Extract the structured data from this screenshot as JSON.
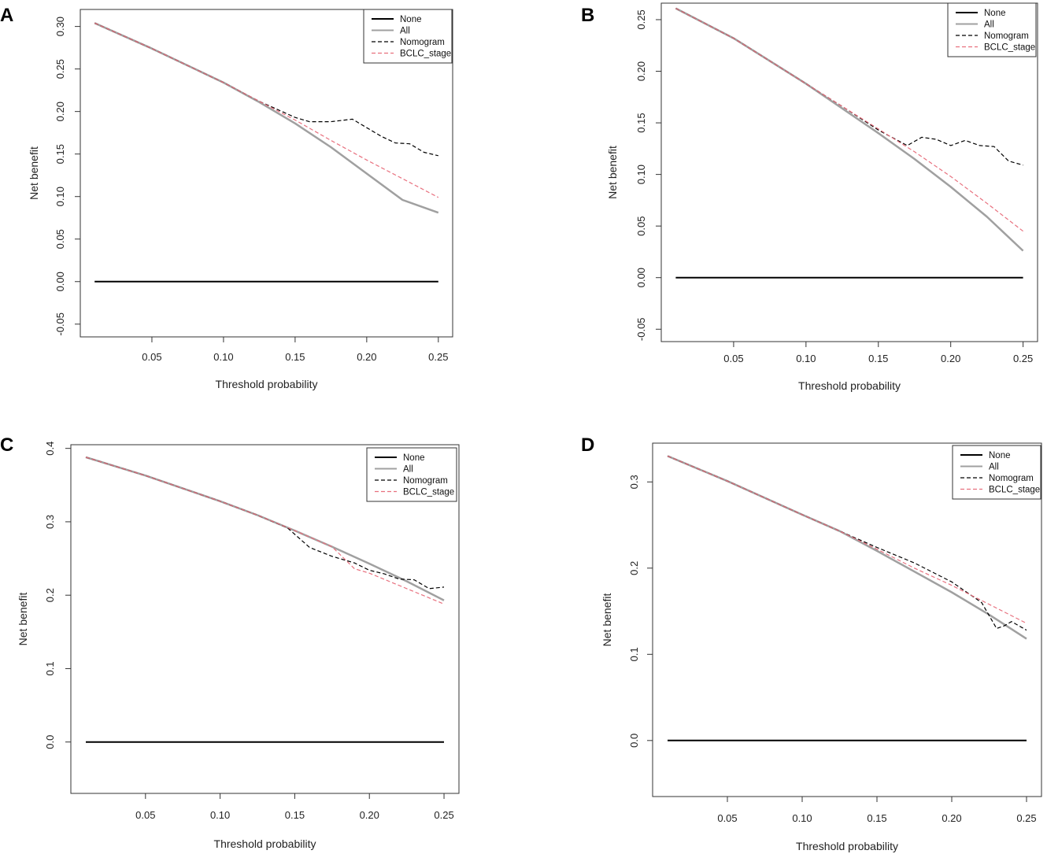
{
  "chart_data": [
    {
      "panel": "A",
      "type": "line",
      "xlabel": "Threshold probability",
      "ylabel": "Net benefit",
      "xlim": [
        0.0,
        0.26
      ],
      "ylim": [
        -0.065,
        0.32
      ],
      "xticks": [
        0.05,
        0.1,
        0.15,
        0.2,
        0.25
      ],
      "xtick_labels": [
        "0.05",
        "0.10",
        "0.15",
        "0.20",
        "0.25"
      ],
      "yticks": [
        -0.05,
        0.0,
        0.05,
        0.1,
        0.15,
        0.2,
        0.25,
        0.3
      ],
      "ytick_labels": [
        "-0.05",
        "0.00",
        "0.05",
        "0.10",
        "0.15",
        "0.20",
        "0.25",
        "0.30"
      ],
      "legend": [
        "None",
        "All",
        "Nomogram",
        "BCLC_stage"
      ],
      "series": [
        {
          "name": "None",
          "color": "#000000",
          "style": "solid",
          "width": 2,
          "x": [
            0.01,
            0.25
          ],
          "y": [
            0.0,
            0.0
          ]
        },
        {
          "name": "All",
          "color": "#a0a0a0",
          "style": "solid",
          "width": 2.5,
          "x": [
            0.01,
            0.05,
            0.1,
            0.125,
            0.15,
            0.175,
            0.2,
            0.225,
            0.25
          ],
          "y": [
            0.304,
            0.274,
            0.234,
            0.211,
            0.186,
            0.158,
            0.127,
            0.096,
            0.081
          ]
        },
        {
          "name": "Nomogram",
          "color": "#000000",
          "style": "dashed",
          "width": 1.2,
          "x": [
            0.01,
            0.05,
            0.1,
            0.125,
            0.15,
            0.16,
            0.175,
            0.19,
            0.2,
            0.21,
            0.22,
            0.23,
            0.24,
            0.25
          ],
          "y": [
            0.304,
            0.274,
            0.234,
            0.212,
            0.193,
            0.188,
            0.188,
            0.191,
            0.181,
            0.171,
            0.163,
            0.162,
            0.152,
            0.148
          ]
        },
        {
          "name": "BCLC_stage",
          "color": "#e8707e",
          "style": "dashed",
          "width": 1.2,
          "x": [
            0.01,
            0.05,
            0.1,
            0.125,
            0.15,
            0.175,
            0.2,
            0.225,
            0.25
          ],
          "y": [
            0.304,
            0.274,
            0.234,
            0.212,
            0.19,
            0.166,
            0.143,
            0.121,
            0.099
          ]
        }
      ]
    },
    {
      "panel": "B",
      "type": "line",
      "xlabel": "Threshold probability",
      "ylabel": "Net benefit",
      "xlim": [
        0.0,
        0.26
      ],
      "ylim": [
        -0.062,
        0.266
      ],
      "xticks": [
        0.05,
        0.1,
        0.15,
        0.2,
        0.25
      ],
      "xtick_labels": [
        "0.05",
        "0.10",
        "0.15",
        "0.20",
        "0.25"
      ],
      "yticks": [
        -0.05,
        0.0,
        0.05,
        0.1,
        0.15,
        0.2,
        0.25
      ],
      "ytick_labels": [
        "-0.05",
        "0.00",
        "0.05",
        "0.10",
        "0.15",
        "0.20",
        "0.25"
      ],
      "legend": [
        "None",
        "All",
        "Nomogram",
        "BCLC_stage"
      ],
      "series": [
        {
          "name": "None",
          "color": "#000000",
          "style": "solid",
          "width": 2,
          "x": [
            0.01,
            0.25
          ],
          "y": [
            0.0,
            0.0
          ]
        },
        {
          "name": "All",
          "color": "#a0a0a0",
          "style": "solid",
          "width": 2.5,
          "x": [
            0.01,
            0.05,
            0.1,
            0.125,
            0.15,
            0.175,
            0.2,
            0.225,
            0.25
          ],
          "y": [
            0.261,
            0.232,
            0.188,
            0.164,
            0.14,
            0.115,
            0.088,
            0.059,
            0.026
          ]
        },
        {
          "name": "Nomogram",
          "color": "#000000",
          "style": "dashed",
          "width": 1.2,
          "x": [
            0.01,
            0.05,
            0.1,
            0.125,
            0.15,
            0.17,
            0.18,
            0.19,
            0.2,
            0.21,
            0.22,
            0.23,
            0.24,
            0.25
          ],
          "y": [
            0.261,
            0.232,
            0.188,
            0.166,
            0.143,
            0.128,
            0.136,
            0.134,
            0.128,
            0.133,
            0.128,
            0.127,
            0.113,
            0.109
          ]
        },
        {
          "name": "BCLC_stage",
          "color": "#e8707e",
          "style": "dashed",
          "width": 1.2,
          "x": [
            0.01,
            0.05,
            0.1,
            0.125,
            0.15,
            0.175,
            0.2,
            0.225,
            0.25
          ],
          "y": [
            0.261,
            0.232,
            0.188,
            0.166,
            0.144,
            0.122,
            0.098,
            0.072,
            0.045
          ]
        }
      ]
    },
    {
      "panel": "C",
      "type": "line",
      "xlabel": "Threshold probability",
      "ylabel": "Net benefit",
      "xlim": [
        0.0,
        0.26
      ],
      "ylim": [
        -0.07,
        0.405
      ],
      "xticks": [
        0.05,
        0.1,
        0.15,
        0.2,
        0.25
      ],
      "xtick_labels": [
        "0.05",
        "0.10",
        "0.15",
        "0.20",
        "0.25"
      ],
      "yticks": [
        0.0,
        0.1,
        0.2,
        0.3,
        0.4
      ],
      "ytick_labels": [
        "0.0",
        "0.1",
        "0.2",
        "0.3",
        "0.4"
      ],
      "legend": [
        "None",
        "All",
        "Nomogram",
        "BCLC_stage"
      ],
      "series": [
        {
          "name": "None",
          "color": "#000000",
          "style": "solid",
          "width": 2,
          "x": [
            0.01,
            0.25
          ],
          "y": [
            0.0,
            0.0
          ]
        },
        {
          "name": "All",
          "color": "#a0a0a0",
          "style": "solid",
          "width": 2.5,
          "x": [
            0.01,
            0.05,
            0.1,
            0.125,
            0.15,
            0.175,
            0.2,
            0.225,
            0.25
          ],
          "y": [
            0.388,
            0.363,
            0.328,
            0.309,
            0.288,
            0.266,
            0.243,
            0.219,
            0.193
          ]
        },
        {
          "name": "Nomogram",
          "color": "#000000",
          "style": "dashed",
          "width": 1.2,
          "x": [
            0.01,
            0.05,
            0.1,
            0.125,
            0.145,
            0.16,
            0.175,
            0.19,
            0.2,
            0.21,
            0.22,
            0.23,
            0.24,
            0.25
          ],
          "y": [
            0.388,
            0.363,
            0.328,
            0.309,
            0.292,
            0.265,
            0.253,
            0.244,
            0.234,
            0.229,
            0.222,
            0.221,
            0.209,
            0.211
          ]
        },
        {
          "name": "BCLC_stage",
          "color": "#e8707e",
          "style": "dashed",
          "width": 1.2,
          "x": [
            0.01,
            0.05,
            0.1,
            0.125,
            0.15,
            0.175,
            0.19,
            0.2,
            0.225,
            0.25
          ],
          "y": [
            0.388,
            0.363,
            0.328,
            0.309,
            0.288,
            0.266,
            0.236,
            0.23,
            0.209,
            0.188
          ]
        }
      ]
    },
    {
      "panel": "D",
      "type": "line",
      "xlabel": "Threshold probability",
      "ylabel": "Net benefit",
      "xlim": [
        0.0,
        0.26
      ],
      "ylim": [
        -0.065,
        0.345
      ],
      "xticks": [
        0.05,
        0.1,
        0.15,
        0.2,
        0.25
      ],
      "xtick_labels": [
        "0.05",
        "0.10",
        "0.15",
        "0.20",
        "0.25"
      ],
      "yticks": [
        0.0,
        0.1,
        0.2,
        0.3
      ],
      "ytick_labels": [
        "0.0",
        "0.1",
        "0.2",
        "0.3"
      ],
      "legend": [
        "None",
        "All",
        "Nomogram",
        "BCLC_stage"
      ],
      "series": [
        {
          "name": "None",
          "color": "#000000",
          "style": "solid",
          "width": 2,
          "x": [
            0.01,
            0.25
          ],
          "y": [
            0.0,
            0.0
          ]
        },
        {
          "name": "All",
          "color": "#a0a0a0",
          "style": "solid",
          "width": 2.5,
          "x": [
            0.01,
            0.05,
            0.1,
            0.125,
            0.15,
            0.175,
            0.2,
            0.225,
            0.25
          ],
          "y": [
            0.33,
            0.301,
            0.262,
            0.243,
            0.22,
            0.196,
            0.172,
            0.146,
            0.118
          ]
        },
        {
          "name": "Nomogram",
          "color": "#000000",
          "style": "dashed",
          "width": 1.2,
          "x": [
            0.01,
            0.05,
            0.1,
            0.125,
            0.15,
            0.175,
            0.2,
            0.22,
            0.23,
            0.235,
            0.24,
            0.25
          ],
          "y": [
            0.33,
            0.301,
            0.262,
            0.243,
            0.224,
            0.206,
            0.184,
            0.16,
            0.13,
            0.133,
            0.138,
            0.128
          ]
        },
        {
          "name": "BCLC_stage",
          "color": "#e8707e",
          "style": "dashed",
          "width": 1.2,
          "x": [
            0.01,
            0.05,
            0.1,
            0.125,
            0.15,
            0.175,
            0.2,
            0.225,
            0.25
          ],
          "y": [
            0.33,
            0.301,
            0.262,
            0.243,
            0.222,
            0.2,
            0.18,
            0.158,
            0.136
          ]
        }
      ]
    }
  ]
}
